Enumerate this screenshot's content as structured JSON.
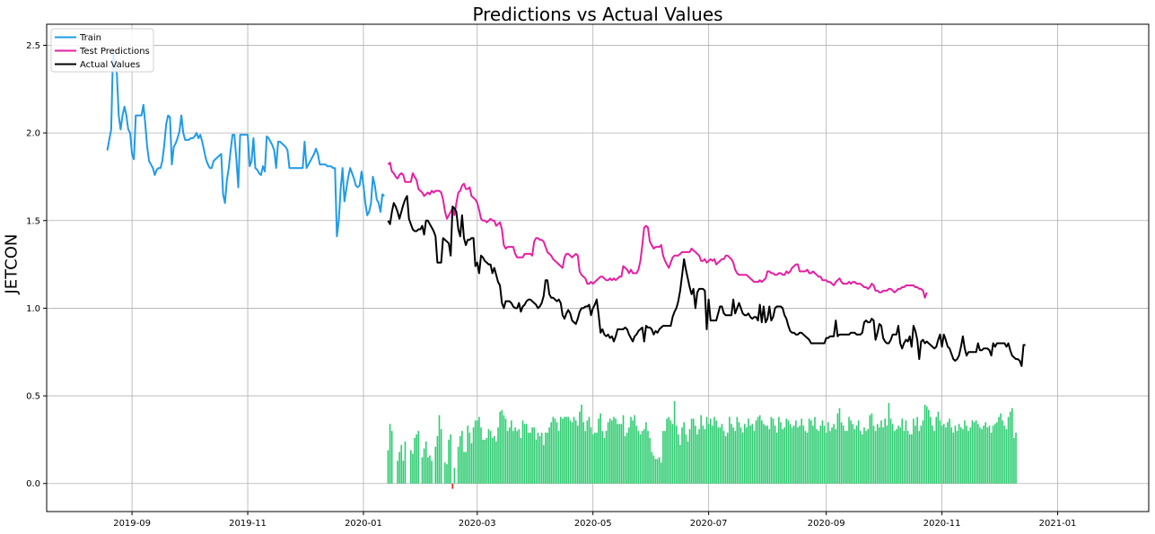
{
  "chart_data": {
    "type": "line",
    "title": "Predictions vs Actual Values",
    "ylabel": "JETCON",
    "xlabel": "",
    "xlim": [
      "2019-07-18",
      "2021-02-18"
    ],
    "ylim": [
      -0.16,
      2.62
    ],
    "grid": true,
    "legend_position": "top-left",
    "x_ticks": [
      "2019-09",
      "2019-11",
      "2020-01",
      "2020-03",
      "2020-05",
      "2020-07",
      "2020-09",
      "2020-11",
      "2021-01"
    ],
    "y_ticks": [
      0.0,
      0.5,
      1.0,
      1.5,
      2.0,
      2.5
    ],
    "y_tick_labels": [
      "0.0",
      "0.5",
      "1.0",
      "1.5",
      "2.0",
      "2.5"
    ],
    "colors": {
      "train": "#1f9be8",
      "test_predictions": "#e61fa3",
      "actual": "#000000",
      "bar_positive": "#2ecc71",
      "bar_negative": "#e01b1b",
      "grid": "#b0b0b0"
    },
    "legend": [
      "Train",
      "Test Predictions",
      "Actual Values"
    ],
    "series": [
      {
        "name": "Train",
        "x_start": "2019-08-19",
        "y": [
          1.9,
          1.96,
          2.02,
          2.47,
          2.4,
          2.34,
          2.1,
          2.02,
          2.1,
          2.15,
          2.1,
          2.02,
          2.0,
          1.88,
          1.85,
          2.1,
          2.1,
          2.1,
          2.1,
          2.16,
          2.05,
          1.92,
          1.84,
          1.82,
          1.8,
          1.76,
          1.79,
          1.8,
          1.8,
          1.84,
          1.93,
          2.05,
          2.1,
          2.09,
          1.82,
          1.92,
          1.94,
          1.97,
          2.01,
          2.1,
          2.0,
          1.96,
          1.96,
          1.96,
          1.97,
          1.97,
          1.98,
          2.0,
          1.97,
          1.99,
          1.95,
          1.9,
          1.85,
          1.82,
          1.8,
          1.8,
          1.84,
          1.85,
          1.86,
          1.87,
          1.88,
          1.65,
          1.6,
          1.73,
          1.8,
          1.9,
          1.99,
          1.99,
          1.85,
          1.69,
          1.99,
          1.99,
          1.99,
          1.99,
          1.99,
          1.81,
          1.84,
          1.97,
          1.8,
          1.79,
          1.77,
          1.76,
          1.81,
          1.78,
          1.98,
          1.97,
          1.95,
          1.93,
          1.9,
          1.8,
          1.95,
          1.95,
          1.94,
          1.93,
          1.92,
          1.9,
          1.8,
          1.8,
          1.8,
          1.8,
          1.8,
          1.8,
          1.8,
          1.8,
          1.95,
          1.8,
          1.82,
          1.84,
          1.86,
          1.88,
          1.91,
          1.88,
          1.82,
          1.82,
          1.82,
          1.82,
          1.81,
          1.81,
          1.81,
          1.8,
          1.8,
          1.41,
          1.5,
          1.68,
          1.8,
          1.61,
          1.68,
          1.75,
          1.8,
          1.77,
          1.74,
          1.7,
          1.69,
          1.7,
          1.78,
          1.7,
          1.6,
          1.53,
          1.55,
          1.6,
          1.75,
          1.7,
          1.62,
          1.6,
          1.55,
          1.65,
          1.64
        ]
      },
      {
        "name": "Test Predictions",
        "x_start": "2020-01-14",
        "y": [
          1.82,
          1.83,
          1.78,
          1.77,
          1.75,
          1.74,
          1.76,
          1.77,
          1.76,
          1.72,
          1.72,
          1.72,
          1.72,
          1.77,
          1.75,
          1.73,
          1.68,
          1.67,
          1.66,
          1.64,
          1.65,
          1.66,
          1.65,
          1.67,
          1.66,
          1.67,
          1.67,
          1.67,
          1.66,
          1.62,
          1.55,
          1.51,
          1.53,
          1.55,
          1.57,
          1.53,
          1.6,
          1.66,
          1.67,
          1.7,
          1.71,
          1.68,
          1.68,
          1.69,
          1.64,
          1.63,
          1.62,
          1.6,
          1.56,
          1.51,
          1.5,
          1.5,
          1.49,
          1.5,
          1.51,
          1.5,
          1.5,
          1.47,
          1.48,
          1.49,
          1.45,
          1.36,
          1.34,
          1.35,
          1.35,
          1.35,
          1.35,
          1.31,
          1.29,
          1.29,
          1.29,
          1.29,
          1.31,
          1.31,
          1.31,
          1.31,
          1.3,
          1.38,
          1.4,
          1.4,
          1.39,
          1.39,
          1.38,
          1.35,
          1.32,
          1.31,
          1.3,
          1.28,
          1.27,
          1.26,
          1.25,
          1.24,
          1.23,
          1.29,
          1.31,
          1.31,
          1.3,
          1.29,
          1.3,
          1.31,
          1.3,
          1.21,
          1.19,
          1.18,
          1.17,
          1.14,
          1.14,
          1.15,
          1.14,
          1.15,
          1.16,
          1.17,
          1.18,
          1.18,
          1.17,
          1.16,
          1.16,
          1.17,
          1.16,
          1.17,
          1.16,
          1.17,
          1.18,
          1.18,
          1.24,
          1.23,
          1.22,
          1.2,
          1.22,
          1.2,
          1.2,
          1.2,
          1.22,
          1.27,
          1.36,
          1.46,
          1.47,
          1.46,
          1.38,
          1.36,
          1.34,
          1.35,
          1.35,
          1.35,
          1.36,
          1.3,
          1.27,
          1.25,
          1.23,
          1.26,
          1.29,
          1.3,
          1.3,
          1.3,
          1.31,
          1.32,
          1.32,
          1.32,
          1.32,
          1.32,
          1.34,
          1.33,
          1.32,
          1.31,
          1.3,
          1.27,
          1.27,
          1.28,
          1.26,
          1.27,
          1.28,
          1.27,
          1.28,
          1.25,
          1.26,
          1.27,
          1.28,
          1.28,
          1.3,
          1.3,
          1.29,
          1.28,
          1.26,
          1.22,
          1.2,
          1.19,
          1.19,
          1.19,
          1.19,
          1.19,
          1.18,
          1.17,
          1.16,
          1.15,
          1.15,
          1.15,
          1.16,
          1.15,
          1.16,
          1.17,
          1.21,
          1.21,
          1.2,
          1.2,
          1.19,
          1.19,
          1.2,
          1.2,
          1.19,
          1.19,
          1.21,
          1.2,
          1.21,
          1.23,
          1.24,
          1.25,
          1.25,
          1.21,
          1.21,
          1.21,
          1.21,
          1.22,
          1.2,
          1.2,
          1.21,
          1.2,
          1.19,
          1.18,
          1.18,
          1.16,
          1.16,
          1.16,
          1.15,
          1.15,
          1.14,
          1.13,
          1.15,
          1.16,
          1.17,
          1.15,
          1.14,
          1.14,
          1.14,
          1.15,
          1.14,
          1.15,
          1.15,
          1.14,
          1.14,
          1.14,
          1.13,
          1.12,
          1.12,
          1.11,
          1.12,
          1.14,
          1.13,
          1.1,
          1.1,
          1.09,
          1.09,
          1.1,
          1.1,
          1.1,
          1.11,
          1.11,
          1.1,
          1.09,
          1.1,
          1.11,
          1.11,
          1.12,
          1.12,
          1.13,
          1.13,
          1.13,
          1.13,
          1.13,
          1.12,
          1.12,
          1.11,
          1.11,
          1.1,
          1.06,
          1.09
        ]
      },
      {
        "name": "Actual Values",
        "x_start": "2020-01-14",
        "y": [
          1.5,
          1.48,
          1.55,
          1.6,
          1.58,
          1.55,
          1.51,
          1.55,
          1.59,
          1.62,
          1.64,
          1.51,
          1.48,
          1.45,
          1.44,
          1.44,
          1.45,
          1.45,
          1.47,
          1.42,
          1.5,
          1.5,
          1.48,
          1.46,
          1.44,
          1.41,
          1.26,
          1.26,
          1.26,
          1.4,
          1.39,
          1.38,
          1.37,
          1.3,
          1.58,
          1.57,
          1.55,
          1.45,
          1.41,
          1.53,
          1.4,
          1.36,
          1.39,
          1.39,
          1.4,
          1.4,
          1.24,
          1.26,
          1.2,
          1.3,
          1.29,
          1.27,
          1.26,
          1.25,
          1.25,
          1.2,
          1.23,
          1.19,
          1.15,
          1.13,
          1.03,
          1.0,
          1.04,
          1.04,
          1.04,
          1.03,
          1.01,
          1.0,
          1.0,
          1.03,
          0.98,
          1.01,
          1.02,
          1.04,
          1.05,
          1.05,
          1.04,
          1.03,
          1.02,
          1.0,
          1.01,
          1.03,
          1.07,
          1.16,
          1.16,
          1.08,
          1.06,
          1.06,
          1.05,
          1.04,
          1.05,
          1.03,
          0.96,
          0.94,
          0.97,
          0.99,
          0.97,
          0.93,
          0.92,
          0.91,
          0.94,
          0.98,
          1.0,
          1.0,
          1.01,
          1.01,
          1.02,
          0.96,
          1.0,
          1.02,
          1.05,
          0.96,
          0.86,
          0.88,
          0.85,
          0.84,
          0.85,
          0.83,
          0.84,
          0.81,
          0.84,
          0.88,
          0.88,
          0.88,
          0.88,
          0.89,
          0.88,
          0.85,
          0.83,
          0.81,
          0.84,
          0.85,
          0.87,
          0.88,
          0.89,
          0.81,
          0.9,
          0.89,
          0.89,
          0.88,
          0.85,
          0.87,
          0.86,
          0.88,
          0.89,
          0.9,
          0.9,
          0.9,
          0.9,
          0.9,
          0.95,
          0.98,
          1.0,
          1.04,
          1.1,
          1.19,
          1.28,
          1.22,
          1.17,
          1.12,
          1.08,
          1.11,
          1.0,
          1.09,
          1.11,
          1.11,
          1.11,
          1.1,
          0.88,
          1.05,
          0.93,
          0.93,
          0.93,
          0.93,
          0.97,
          1.01,
          1.01,
          0.97,
          0.96,
          0.96,
          0.96,
          0.96,
          1.05,
          0.97,
          1.0,
          1.03,
          1.0,
          0.97,
          0.96,
          0.96,
          0.97,
          0.95,
          0.94,
          0.95,
          0.95,
          0.93,
          1.02,
          0.92,
          1.01,
          0.92,
          0.94,
          1.01,
          0.93,
          0.95,
          1.0,
          1.01,
          1.01,
          1.01,
          1.0,
          0.96,
          0.94,
          0.9,
          0.87,
          0.86,
          0.86,
          0.85,
          0.85,
          0.86,
          0.86,
          0.85,
          0.84,
          0.83,
          0.82,
          0.8,
          0.8,
          0.8,
          0.8,
          0.8,
          0.8,
          0.8,
          0.8,
          0.83,
          0.83,
          0.84,
          0.84,
          0.84,
          0.93,
          0.84,
          0.85,
          0.85,
          0.85,
          0.85,
          0.85,
          0.85,
          0.86,
          0.86,
          0.86,
          0.85,
          0.85,
          0.85,
          0.86,
          0.92,
          0.93,
          0.92,
          0.92,
          0.94,
          0.93,
          0.82,
          0.86,
          0.91,
          0.9,
          0.83,
          0.81,
          0.8,
          0.8,
          0.82,
          0.85,
          0.85,
          0.85,
          0.9,
          0.8,
          0.77,
          0.8,
          0.82,
          0.81,
          0.84,
          0.78,
          0.9,
          0.87,
          0.82,
          0.71,
          0.81,
          0.82,
          0.8,
          0.81,
          0.8,
          0.79,
          0.78,
          0.77,
          0.78,
          0.82,
          0.85,
          0.78,
          0.85,
          0.82,
          0.78,
          0.77,
          0.74,
          0.71,
          0.7,
          0.71,
          0.73,
          0.78,
          0.84,
          0.77,
          0.73,
          0.75,
          0.75,
          0.75,
          0.75,
          0.75,
          0.8,
          0.76,
          0.76,
          0.77,
          0.77,
          0.77,
          0.76,
          0.73,
          0.8,
          0.78,
          0.8,
          0.8,
          0.8,
          0.8,
          0.8,
          0.78,
          0.8,
          0.76,
          0.73,
          0.72,
          0.71,
          0.71,
          0.7,
          0.67,
          0.79,
          0.79
        ]
      }
    ],
    "bars": {
      "x_start": "2020-01-14",
      "values": [
        0.19,
        0.34,
        0.3,
        0.0,
        0.0,
        0.13,
        0.18,
        0.22,
        0.13,
        0.24,
        0.0,
        0.0,
        0.19,
        0.17,
        0.26,
        0.28,
        0.3,
        0.0,
        0.15,
        0.2,
        0.24,
        0.15,
        0.16,
        0.13,
        0.0,
        0.21,
        0.27,
        0.39,
        0.31,
        0.0,
        0.12,
        0.11,
        0.25,
        0.28,
        -0.03,
        0.09,
        0.0,
        0.21,
        0.27,
        0.3,
        0.18,
        0.18,
        0.33,
        0.29,
        0.23,
        0.32,
        0.36,
        0.36,
        0.38,
        0.32,
        0.25,
        0.25,
        0.26,
        0.31,
        0.3,
        0.26,
        0.27,
        0.24,
        0.32,
        0.41,
        0.42,
        0.39,
        0.37,
        0.3,
        0.32,
        0.36,
        0.3,
        0.32,
        0.3,
        0.31,
        0.26,
        0.36,
        0.34,
        0.34,
        0.29,
        0.29,
        0.32,
        0.32,
        0.25,
        0.29,
        0.27,
        0.29,
        0.22,
        0.29,
        0.29,
        0.32,
        0.35,
        0.38,
        0.37,
        0.35,
        0.3,
        0.38,
        0.37,
        0.38,
        0.38,
        0.38,
        0.36,
        0.35,
        0.38,
        0.36,
        0.33,
        0.41,
        0.45,
        0.35,
        0.3,
        0.36,
        0.38,
        0.32,
        0.28,
        0.29,
        0.29,
        0.37,
        0.4,
        0.3,
        0.26,
        0.3,
        0.35,
        0.37,
        0.36,
        0.38,
        0.37,
        0.34,
        0.34,
        0.34,
        0.39,
        0.27,
        0.29,
        0.32,
        0.38,
        0.36,
        0.39,
        0.33,
        0.3,
        0.28,
        0.3,
        0.31,
        0.35,
        0.3,
        0.26,
        0.18,
        0.16,
        0.14,
        0.14,
        0.15,
        0.12,
        0.3,
        0.3,
        0.37,
        0.38,
        0.36,
        0.34,
        0.47,
        0.33,
        0.28,
        0.22,
        0.32,
        0.35,
        0.28,
        0.24,
        0.31,
        0.37,
        0.37,
        0.33,
        0.28,
        0.31,
        0.39,
        0.33,
        0.31,
        0.38,
        0.34,
        0.37,
        0.33,
        0.38,
        0.36,
        0.32,
        0.32,
        0.34,
        0.3,
        0.27,
        0.29,
        0.38,
        0.34,
        0.32,
        0.3,
        0.38,
        0.35,
        0.32,
        0.29,
        0.34,
        0.32,
        0.37,
        0.33,
        0.34,
        0.3,
        0.36,
        0.38,
        0.39,
        0.36,
        0.34,
        0.33,
        0.33,
        0.31,
        0.38,
        0.37,
        0.33,
        0.29,
        0.38,
        0.35,
        0.31,
        0.32,
        0.37,
        0.36,
        0.34,
        0.32,
        0.33,
        0.36,
        0.32,
        0.33,
        0.37,
        0.33,
        0.3,
        0.29,
        0.37,
        0.36,
        0.33,
        0.38,
        0.31,
        0.3,
        0.33,
        0.36,
        0.33,
        0.29,
        0.35,
        0.3,
        0.32,
        0.34,
        0.31,
        0.4,
        0.43,
        0.35,
        0.33,
        0.3,
        0.3,
        0.38,
        0.36,
        0.34,
        0.31,
        0.33,
        0.36,
        0.3,
        0.28,
        0.32,
        0.3,
        0.31,
        0.39,
        0.4,
        0.33,
        0.3,
        0.34,
        0.32,
        0.36,
        0.32,
        0.37,
        0.33,
        0.46,
        0.37,
        0.34,
        0.3,
        0.31,
        0.33,
        0.32,
        0.37,
        0.3,
        0.36,
        0.3,
        0.28,
        0.28,
        0.37,
        0.33,
        0.38,
        0.3,
        0.33,
        0.36,
        0.45,
        0.44,
        0.42,
        0.38,
        0.33,
        0.3,
        0.38,
        0.41,
        0.36,
        0.33,
        0.34,
        0.32,
        0.35,
        0.37,
        0.32,
        0.29,
        0.33,
        0.3,
        0.34,
        0.32,
        0.31,
        0.36,
        0.33,
        0.3,
        0.32,
        0.36,
        0.35,
        0.36,
        0.34,
        0.32,
        0.31,
        0.33,
        0.35,
        0.32,
        0.33,
        0.29,
        0.33,
        0.34,
        0.35,
        0.38,
        0.4,
        0.36,
        0.33,
        0.31,
        0.38,
        0.41,
        0.43,
        0.26,
        0.29
      ]
    }
  }
}
